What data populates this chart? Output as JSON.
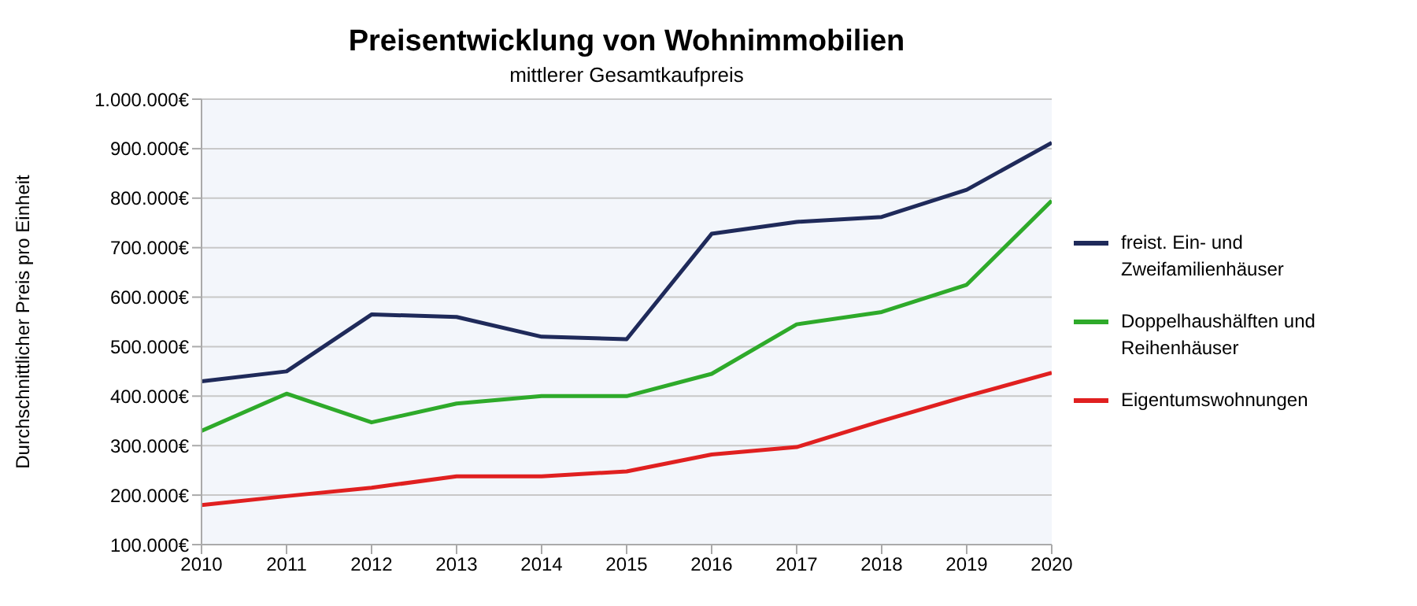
{
  "chart_data": {
    "type": "line",
    "title": "Preisentwicklung von Wohnimmobilien",
    "subtitle": "mittlerer Gesamtkaufpreis",
    "ylabel": "Durchschnittlicher Preis pro Einheit",
    "x": [
      2010,
      2011,
      2012,
      2013,
      2014,
      2015,
      2016,
      2017,
      2018,
      2019,
      2020
    ],
    "xlim": [
      2010,
      2020
    ],
    "xticks": [
      2010,
      2011,
      2012,
      2013,
      2014,
      2015,
      2016,
      2017,
      2018,
      2019,
      2020
    ],
    "ylim": [
      100000,
      1000000
    ],
    "yticks": [
      {
        "value": 100000,
        "label": "100.000€"
      },
      {
        "value": 200000,
        "label": "200.000€"
      },
      {
        "value": 300000,
        "label": "300.000€"
      },
      {
        "value": 400000,
        "label": "400.000€"
      },
      {
        "value": 500000,
        "label": "500.000€"
      },
      {
        "value": 600000,
        "label": "600.000€"
      },
      {
        "value": 700000,
        "label": "700.000€"
      },
      {
        "value": 800000,
        "label": "800.000€"
      },
      {
        "value": 900000,
        "label": "900.000€"
      },
      {
        "value": 1000000,
        "label": "1.000.000€"
      }
    ],
    "grid": "y",
    "legend": "right",
    "marker": "none",
    "series": [
      {
        "name": "freist. Ein- und Zweifamilienhäuser",
        "color": "#1f2a5a",
        "values": [
          430000,
          450000,
          565000,
          560000,
          520000,
          515000,
          728000,
          752000,
          762000,
          817000,
          912000
        ]
      },
      {
        "name": "Doppelhaushälften und Reihenhäuser",
        "color": "#2eaa2a",
        "values": [
          330000,
          405000,
          347000,
          385000,
          400000,
          400000,
          445000,
          545000,
          570000,
          625000,
          795000
        ]
      },
      {
        "name": "Eigentumswohnungen",
        "color": "#e02020",
        "values": [
          180000,
          198000,
          215000,
          238000,
          238000,
          248000,
          282000,
          297000,
          350000,
          400000,
          447000
        ]
      }
    ]
  }
}
